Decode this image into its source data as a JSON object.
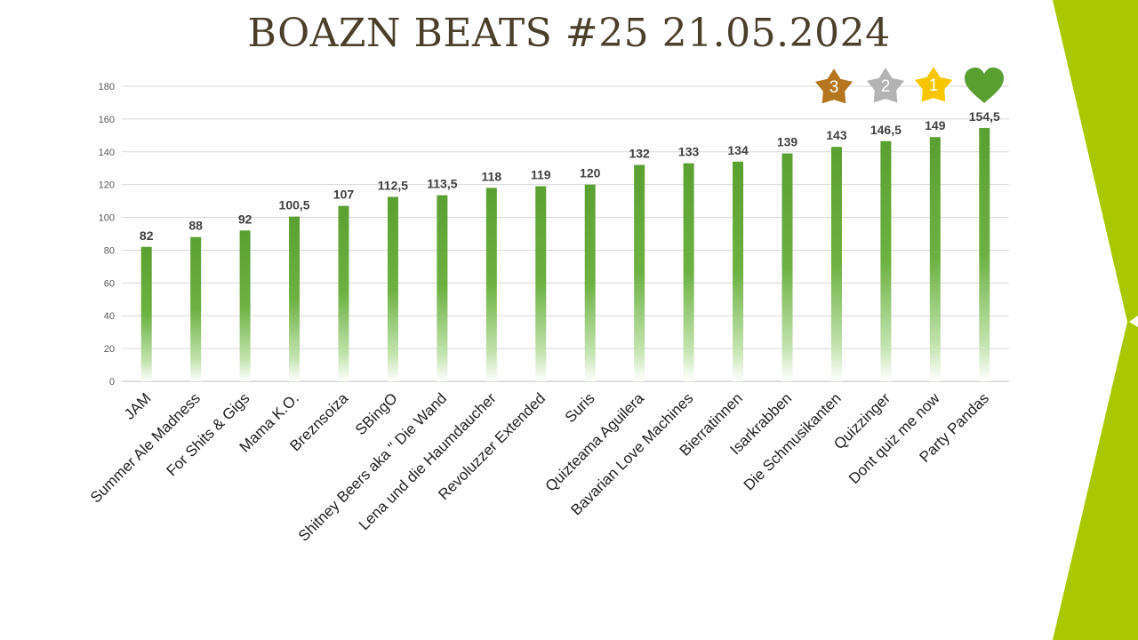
{
  "slide": {
    "title": "BOAZN BEATS #25 21.05.2024",
    "accent_color": "#a9c800",
    "title_color": "#4a3f2a"
  },
  "badges": [
    {
      "icon": "bronze-star-icon",
      "label": "3",
      "color": "#b5761f"
    },
    {
      "icon": "silver-star-icon",
      "label": "2",
      "color": "#b3b3b3"
    },
    {
      "icon": "gold-star-icon",
      "label": "1",
      "color": "#f7c600"
    },
    {
      "icon": "heart-icon",
      "label": "",
      "color": "#5aa031"
    }
  ],
  "chart_data": {
    "type": "bar",
    "categories": [
      "JAM",
      "Summer Ale Madness",
      "For Shits & Gigs",
      "Mama K.O.",
      "Breznsoiza",
      "SBingO",
      "Shitney Beers aka \" Die Wand",
      "Lena und die Haumdaucher",
      "Revoluzzer Extended",
      "Suris",
      "Quizteama Aguilera",
      "Bavarian Love Machines",
      "Bierratinnen",
      "Isarkrabben",
      "Die Schmusikanten",
      "Quizzinger",
      "Dont quiz me now",
      "Party Pandas"
    ],
    "values": [
      82,
      88,
      92,
      100.5,
      107,
      112.5,
      113.5,
      118,
      119,
      120,
      132,
      133,
      134,
      139,
      143,
      146.5,
      149,
      154.5
    ],
    "value_labels": [
      "82",
      "88",
      "92",
      "100,5",
      "107",
      "112,5",
      "113,5",
      "118",
      "119",
      "120",
      "132",
      "133",
      "134",
      "139",
      "143",
      "146,5",
      "149",
      "154,5"
    ],
    "yticks": [
      "0",
      "20",
      "40",
      "60",
      "80",
      "100",
      "120",
      "140",
      "160",
      "180"
    ],
    "ylim": [
      0,
      180
    ],
    "grid": true,
    "legend": "none",
    "bar_color": "#5aa031"
  }
}
